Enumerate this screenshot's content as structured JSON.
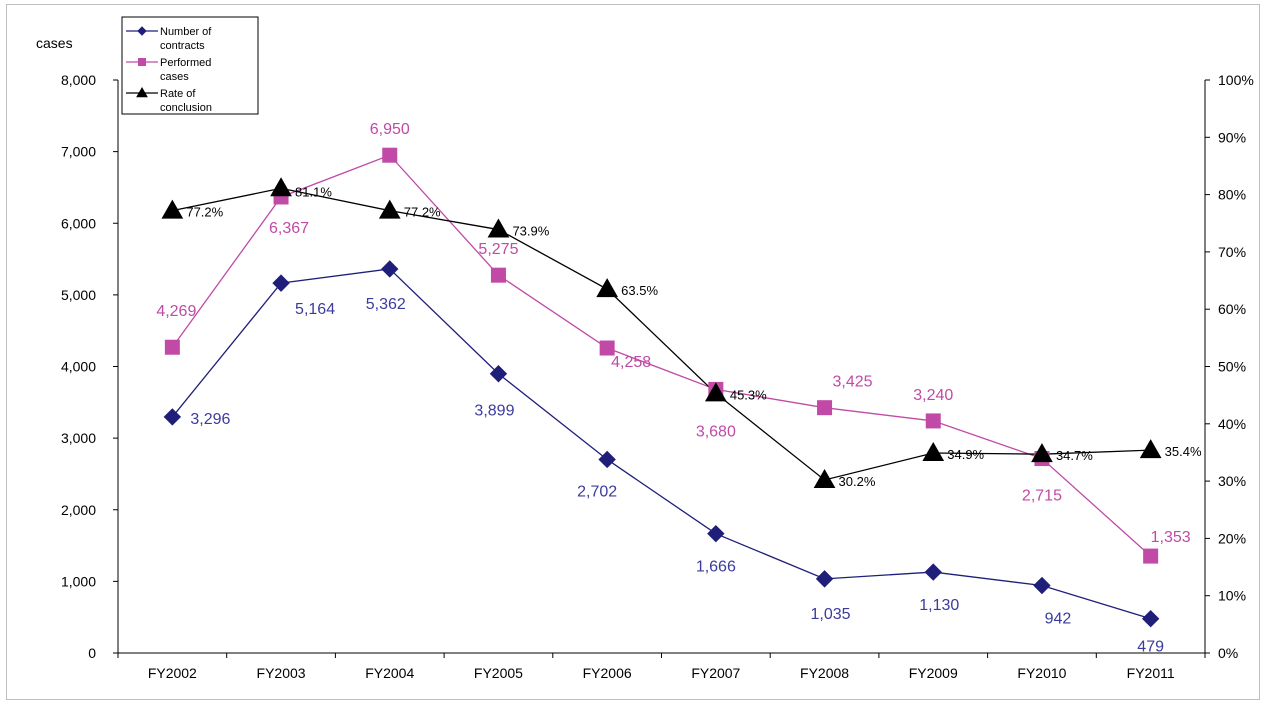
{
  "chart_data": {
    "type": "line",
    "title": "",
    "y_left_label": "cases",
    "y_right_label": "",
    "categories": [
      "FY2002",
      "FY2003",
      "FY2004",
      "FY2005",
      "FY2006",
      "FY2007",
      "FY2008",
      "FY2009",
      "FY2010",
      "FY2011"
    ],
    "y_left_ticks": [
      "0",
      "1,000",
      "2,000",
      "3,000",
      "4,000",
      "5,000",
      "6,000",
      "7,000",
      "8,000"
    ],
    "y_right_ticks": [
      "0%",
      "10%",
      "20%",
      "30%",
      "40%",
      "50%",
      "60%",
      "70%",
      "80%",
      "90%",
      "100%"
    ],
    "ylim_left": [
      0,
      8000
    ],
    "ylim_right": [
      0,
      100
    ],
    "grid": false,
    "legend_position": "top-left",
    "series": [
      {
        "name": "Number of contracts",
        "legend_lines": [
          "Number of",
          "contracts"
        ],
        "axis": "left",
        "marker": "diamond",
        "color": "#1f1f7a",
        "label_color": "#3b3b9e",
        "values": [
          3296,
          5164,
          5362,
          3899,
          2702,
          1666,
          1035,
          1130,
          942,
          479
        ],
        "labels": [
          "3,296",
          "5,164",
          "5,362",
          "3,899",
          "2,702",
          "1,666",
          "1,035",
          "1,130",
          "942",
          "479"
        ]
      },
      {
        "name": "Performed cases",
        "legend_lines": [
          "Performed",
          "cases"
        ],
        "axis": "left",
        "marker": "square",
        "color": "#c04aa6",
        "label_color": "#c04aa6",
        "values": [
          4269,
          6367,
          6950,
          5275,
          4258,
          3680,
          3425,
          3240,
          2715,
          1353
        ],
        "labels": [
          "4,269",
          "6,367",
          "6,950",
          "5,275",
          "4,258",
          "3,680",
          "3,425",
          "3,240",
          "2,715",
          "1,353"
        ]
      },
      {
        "name": "Rate of conclusion",
        "legend_lines": [
          "Rate of",
          "conclusion"
        ],
        "axis": "right",
        "marker": "triangle",
        "color": "#000000",
        "label_color": "#000000",
        "values": [
          77.2,
          81.1,
          77.2,
          73.9,
          63.5,
          45.3,
          30.2,
          34.9,
          34.7,
          35.4
        ],
        "labels": [
          "77.2%",
          "81.1%",
          "77.2%",
          "73.9%",
          "63.5%",
          "45.3%",
          "30.2%",
          "34.9%",
          "34.7%",
          "35.4%"
        ]
      }
    ]
  }
}
